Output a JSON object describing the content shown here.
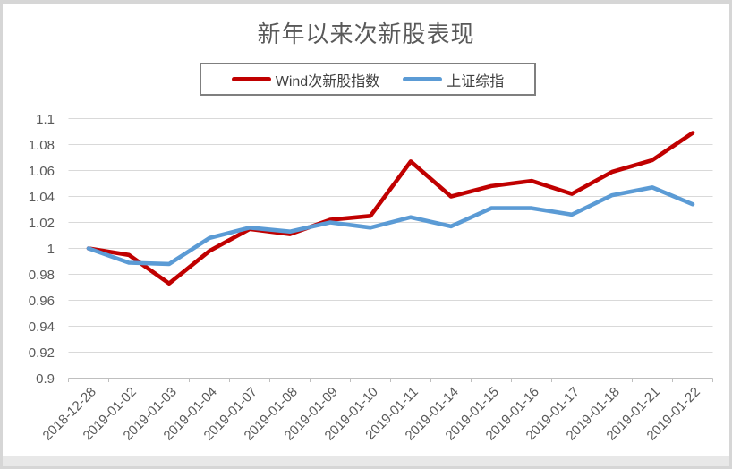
{
  "chart_data": {
    "type": "line",
    "title": "新年以来次新股表现",
    "x": [
      "2018-12-28",
      "2019-01-02",
      "2019-01-03",
      "2019-01-04",
      "2019-01-07",
      "2019-01-08",
      "2019-01-09",
      "2019-01-10",
      "2019-01-11",
      "2019-01-14",
      "2019-01-15",
      "2019-01-16",
      "2019-01-17",
      "2019-01-18",
      "2019-01-21",
      "2019-01-22"
    ],
    "series": [
      {
        "name": "Wind次新股指数",
        "color": "#c00000",
        "values": [
          1.0,
          0.995,
          0.973,
          0.998,
          1.015,
          1.011,
          1.022,
          1.025,
          1.067,
          1.04,
          1.048,
          1.052,
          1.042,
          1.059,
          1.068,
          1.089
        ]
      },
      {
        "name": "上证综指",
        "color": "#5b9bd5",
        "values": [
          1.0,
          0.989,
          0.988,
          1.008,
          1.016,
          1.013,
          1.02,
          1.016,
          1.024,
          1.017,
          1.031,
          1.031,
          1.026,
          1.041,
          1.047,
          1.034
        ]
      }
    ],
    "ylim": [
      0.9,
      1.1
    ],
    "yticks": [
      "1.1",
      "1.08",
      "1.06",
      "1.04",
      "1.02",
      "1",
      "0.98",
      "0.96",
      "0.94",
      "0.92",
      "0.9"
    ],
    "grid": true,
    "legend_position": "top",
    "x_label_rotation": -45,
    "colors": {
      "gridline": "#d9d9d9",
      "axis": "#bfbfbf",
      "tick_label": "#595959",
      "title": "#595959"
    }
  }
}
